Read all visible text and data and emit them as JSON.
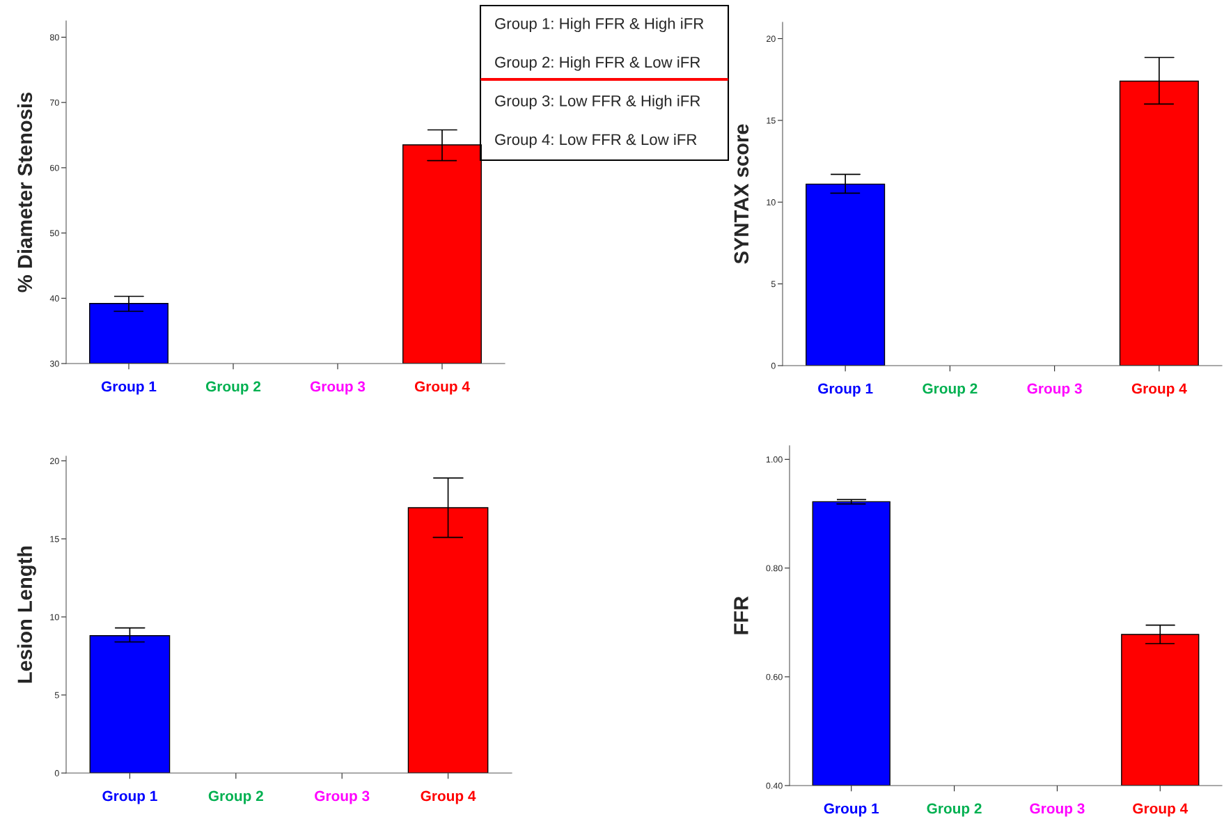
{
  "chart_data": [
    {
      "type": "bar",
      "ylabel": "% Diameter Stenosis",
      "categories": [
        "Group 1",
        "Group 2",
        "Group 3",
        "Group 4"
      ],
      "values": [
        39.2,
        null,
        null,
        63.5
      ],
      "errors": [
        [
          38.0,
          40.3
        ],
        null,
        null,
        [
          61.1,
          65.8
        ]
      ],
      "colors": [
        "#0000ff",
        "#00b050",
        "#ff00ff",
        "#ff0000"
      ],
      "ylim": [
        30,
        82.5
      ],
      "yticks": [
        30,
        40,
        50,
        60,
        70,
        80
      ],
      "grid": false,
      "legend": false,
      "annotations": [
        "Group 1: High FFR & High iFR",
        "Group 2: High FFR & Low iFR",
        "Group 3: Low FFR & High iFR",
        "Group 4: Low FFR & Low iFR"
      ]
    },
    {
      "type": "bar",
      "ylabel": "SYNTAX score",
      "categories": [
        "Group 1",
        "Group 2",
        "Group 3",
        "Group 4"
      ],
      "values": [
        11.1,
        null,
        null,
        17.4
      ],
      "errors": [
        [
          10.55,
          11.7
        ],
        null,
        null,
        [
          16.0,
          18.85
        ]
      ],
      "colors": [
        "#0000ff",
        "#00b050",
        "#ff00ff",
        "#ff0000"
      ],
      "ylim": [
        0,
        21
      ],
      "yticks": [
        0,
        5,
        10,
        15,
        20
      ],
      "grid": false,
      "legend": false
    },
    {
      "type": "bar",
      "ylabel": "Lesion Length",
      "categories": [
        "Group 1",
        "Group 2",
        "Group 3",
        "Group 4"
      ],
      "values": [
        8.8,
        null,
        null,
        17.0
      ],
      "errors": [
        [
          8.4,
          9.3
        ],
        null,
        null,
        [
          15.1,
          18.9
        ]
      ],
      "colors": [
        "#0000ff",
        "#00b050",
        "#ff00ff",
        "#ff0000"
      ],
      "ylim": [
        0,
        20.3
      ],
      "yticks": [
        0,
        5,
        10,
        15,
        20
      ],
      "grid": false,
      "legend": false
    },
    {
      "type": "bar",
      "ylabel": "FFR",
      "categories": [
        "Group 1",
        "Group 2",
        "Group 3",
        "Group 4"
      ],
      "values": [
        0.922,
        null,
        null,
        0.678
      ],
      "errors": [
        [
          0.918,
          0.926
        ],
        null,
        null,
        [
          0.661,
          0.695
        ]
      ],
      "colors": [
        "#0000ff",
        "#00b050",
        "#ff00ff",
        "#ff0000"
      ],
      "ylim": [
        0.4,
        1.025
      ],
      "yticks": [
        {
          "value": 0.4,
          "label": "0.40"
        },
        {
          "value": 0.6,
          "label": "0.60"
        },
        {
          "value": 0.8,
          "label": "0.80"
        },
        {
          "value": 1.0,
          "label": "1.00"
        }
      ],
      "grid": false,
      "legend": false
    }
  ]
}
